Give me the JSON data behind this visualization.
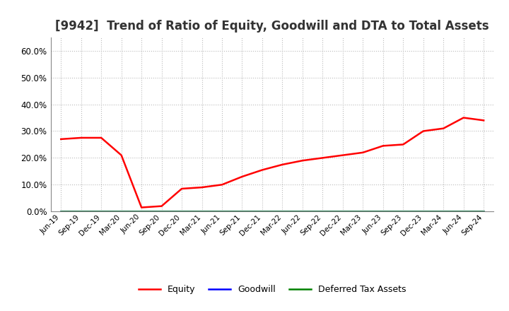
{
  "title": "[9942]  Trend of Ratio of Equity, Goodwill and DTA to Total Assets",
  "x_labels": [
    "Jun-19",
    "Sep-19",
    "Dec-19",
    "Mar-20",
    "Jun-20",
    "Sep-20",
    "Dec-20",
    "Mar-21",
    "Jun-21",
    "Sep-21",
    "Dec-21",
    "Mar-22",
    "Jun-22",
    "Sep-22",
    "Dec-22",
    "Mar-23",
    "Jun-23",
    "Sep-23",
    "Dec-23",
    "Mar-24",
    "Jun-24",
    "Sep-24"
  ],
  "equity": [
    0.27,
    0.275,
    0.275,
    0.21,
    0.015,
    0.02,
    0.085,
    0.09,
    0.1,
    0.13,
    0.155,
    0.175,
    0.19,
    0.2,
    0.21,
    0.22,
    0.245,
    0.25,
    0.3,
    0.31,
    0.35,
    0.34
  ],
  "goodwill": [
    0.0,
    0.0,
    0.0,
    0.0,
    0.0,
    0.0,
    0.0,
    0.0,
    0.0,
    0.0,
    0.0,
    0.0,
    0.0,
    0.0,
    0.0,
    0.0,
    0.0,
    0.0,
    0.0,
    0.0,
    0.0,
    0.0
  ],
  "dta": [
    0.0,
    0.0,
    0.0,
    0.0,
    0.0,
    0.0,
    0.0,
    0.0,
    0.0,
    0.0,
    0.0,
    0.0,
    0.0,
    0.0,
    0.0,
    0.0,
    0.0,
    0.0,
    0.0,
    0.0,
    0.0,
    0.0
  ],
  "equity_color": "#FF0000",
  "goodwill_color": "#0000FF",
  "dta_color": "#008000",
  "ylim": [
    0.0,
    0.65
  ],
  "yticks": [
    0.0,
    0.1,
    0.2,
    0.3,
    0.4,
    0.5,
    0.6
  ],
  "background_color": "#FFFFFF",
  "grid_color": "#AAAAAA",
  "title_fontsize": 12,
  "legend_labels": [
    "Equity",
    "Goodwill",
    "Deferred Tax Assets"
  ]
}
